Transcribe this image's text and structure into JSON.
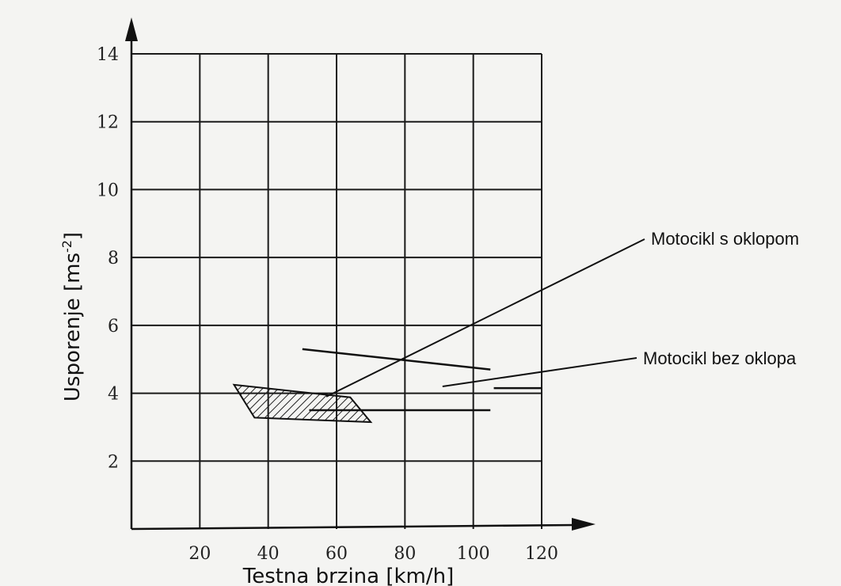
{
  "chart_data": {
    "type": "line",
    "xlabel": "Testna brzina [km/h]",
    "ylabel_main": "Usporenje [ms",
    "ylabel_sup": "-2",
    "ylabel_end": "]",
    "xlim": [
      0,
      120
    ],
    "ylim": [
      0,
      14
    ],
    "x_ticks": [
      "20",
      "40",
      "60",
      "80",
      "100",
      "120"
    ],
    "y_ticks": [
      "2",
      "4",
      "6",
      "8",
      "10",
      "12",
      "14"
    ],
    "grid": true,
    "series": [
      {
        "name": "Motocikl s oklopom",
        "kind": "hatched-band",
        "polygon": [
          [
            30,
            4.25
          ],
          [
            64,
            3.88
          ],
          [
            70,
            3.15
          ],
          [
            36,
            3.28
          ]
        ]
      },
      {
        "name": "Motocikl bez oklopa",
        "kind": "segments",
        "segments": [
          [
            [
              50,
              5.3
            ],
            [
              105,
              4.7
            ]
          ],
          [
            [
              52,
              3.5
            ],
            [
              105,
              3.5
            ]
          ],
          [
            [
              106,
              4.15
            ],
            [
              120,
              4.15
            ]
          ]
        ]
      }
    ],
    "annotations": [
      {
        "text": "Motocikl s oklopom",
        "point": [
          57,
          3.9
        ]
      },
      {
        "text": "Motocikl bez oklopa",
        "point": [
          91,
          4.2
        ]
      }
    ]
  }
}
